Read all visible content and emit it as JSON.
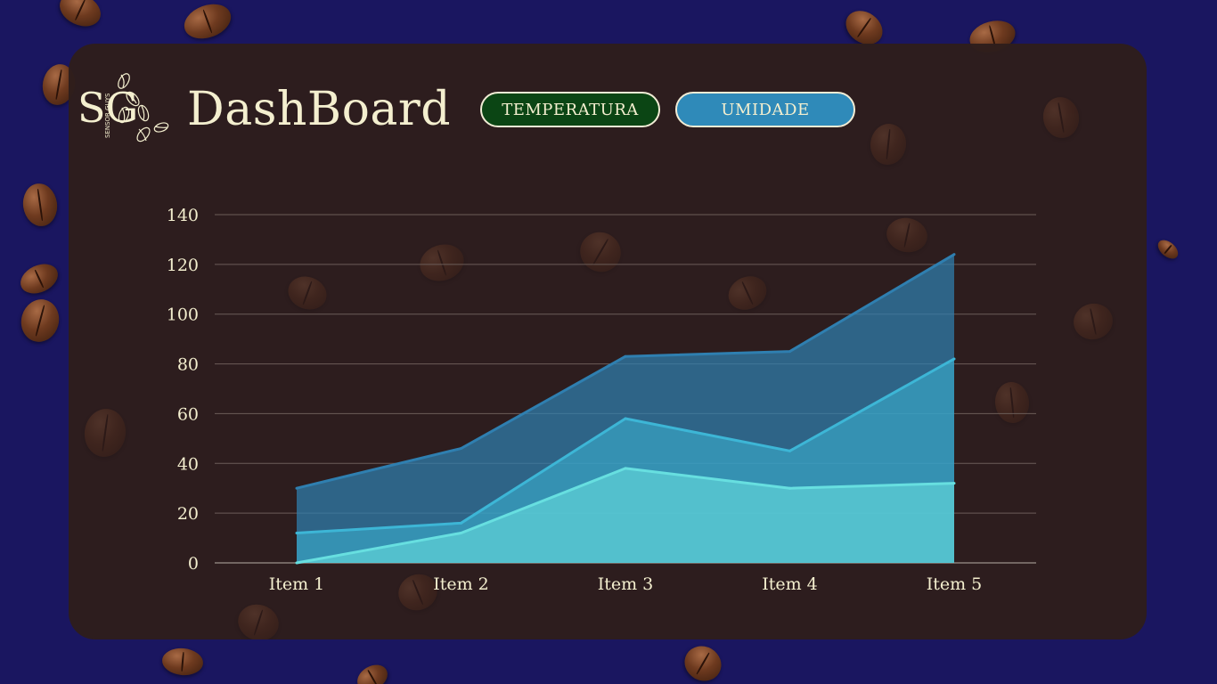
{
  "header": {
    "logo_text": "SG",
    "logo_subtext": "SENSOR GUYS",
    "title": "DashBoard"
  },
  "tabs": [
    {
      "label": "TEMPERATURA",
      "color": "#0b4514"
    },
    {
      "label": "UMIDADE",
      "color": "#2f8ab9"
    }
  ],
  "colors": {
    "page_background": "#1a1660",
    "card_background": "#2e1e1c",
    "text": "#f4efcf"
  },
  "chart_data": {
    "type": "area",
    "title": "",
    "xlabel": "",
    "ylabel": "",
    "categories": [
      "Item 1",
      "Item 2",
      "Item 3",
      "Item 4",
      "Item 5"
    ],
    "ylim": [
      0,
      140
    ],
    "yticks": [
      0,
      20,
      40,
      60,
      80,
      100,
      120,
      140
    ],
    "grid": true,
    "legend": "none",
    "series": [
      {
        "values": [
          30,
          46,
          83,
          85,
          124
        ],
        "color": "#2f7fb0"
      },
      {
        "values": [
          12,
          16,
          58,
          45,
          82
        ],
        "color": "#3db6d6"
      },
      {
        "values": [
          0,
          12,
          38,
          30,
          32
        ],
        "color": "#67dfe0"
      }
    ]
  }
}
